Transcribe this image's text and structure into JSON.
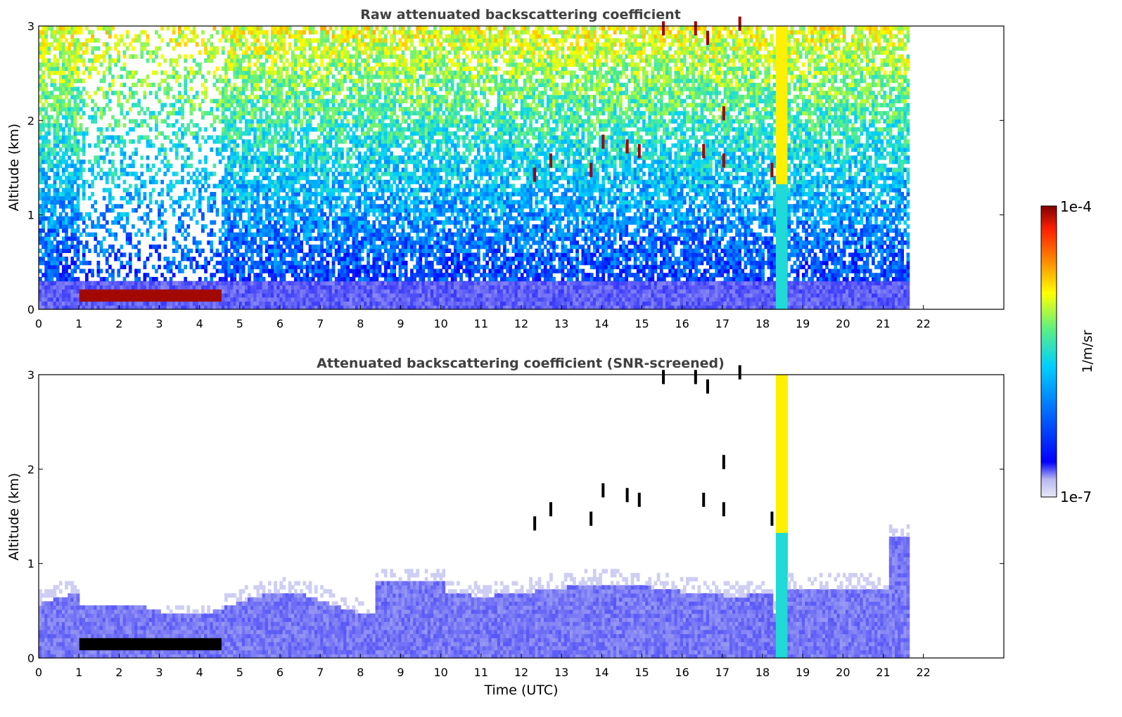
{
  "chart_data": [
    {
      "type": "heatmap",
      "title": "Raw attenuated backscattering coefficient",
      "xlabel": "",
      "ylabel": "Altitude (km)",
      "xlim": [
        0,
        24
      ],
      "ylim": [
        0,
        3
      ],
      "x_ticks": [
        "0",
        "1",
        "2",
        "3",
        "4",
        "5",
        "6",
        "7",
        "8",
        "9",
        "10",
        "11",
        "12",
        "13",
        "14",
        "15",
        "16",
        "17",
        "18",
        "19",
        "20",
        "21",
        "22"
      ],
      "y_ticks": [
        "0",
        "1",
        "2",
        "3"
      ],
      "data_extent_hours": [
        0,
        21.65
      ],
      "grid": false
    },
    {
      "type": "heatmap",
      "title": "Attenuated backscattering coefficient (SNR-screened)",
      "xlabel": "Time (UTC)",
      "ylabel": "Altitude (km)",
      "xlim": [
        0,
        24
      ],
      "ylim": [
        0,
        3
      ],
      "x_ticks": [
        "0",
        "1",
        "2",
        "3",
        "4",
        "5",
        "6",
        "7",
        "8",
        "9",
        "10",
        "11",
        "12",
        "13",
        "14",
        "15",
        "16",
        "17",
        "18",
        "19",
        "20",
        "21",
        "22"
      ],
      "y_ticks": [
        "0",
        "1",
        "2",
        "3"
      ],
      "data_extent_hours": [
        0,
        21.65
      ],
      "grid": false
    }
  ],
  "colorbar": {
    "label": "1/m/sr",
    "max_label": "1e-4",
    "min_label": "1e-7",
    "scale": "log",
    "colormap": [
      "#e8e8f8",
      "#b8b8f0",
      "#0000ff",
      "#0070ff",
      "#00d0ff",
      "#60f080",
      "#ffff00",
      "#ff8000",
      "#ff2000",
      "#800000"
    ]
  }
}
